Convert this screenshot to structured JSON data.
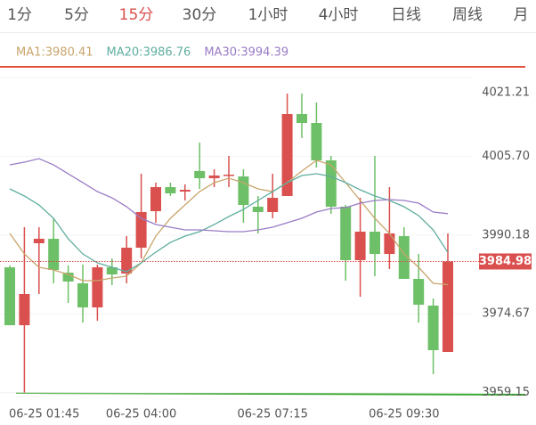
{
  "tabs": [
    {
      "label": "1分",
      "active": false
    },
    {
      "label": "5分",
      "active": false
    },
    {
      "label": "15分",
      "active": true
    },
    {
      "label": "30分",
      "active": false
    },
    {
      "label": "1小时",
      "active": false
    },
    {
      "label": "4小时",
      "active": false
    },
    {
      "label": "日线",
      "active": false
    },
    {
      "label": "周线",
      "active": false
    },
    {
      "label": "月",
      "active": false
    }
  ],
  "chart_data": {
    "type": "candlestick",
    "categories": [
      "06-25 01:45",
      null,
      null,
      null,
      null,
      null,
      null,
      null,
      null,
      "06-25 04:00",
      null,
      null,
      null,
      null,
      null,
      null,
      null,
      null,
      "06-25 07:15",
      null,
      null,
      null,
      null,
      null,
      null,
      null,
      null,
      "06-25 09:30",
      null,
      null,
      null
    ],
    "open": [
      3983.83,
      3972.43,
      3988.57,
      3989.45,
      3982.78,
      3980.68,
      3975.94,
      3983.83,
      3982.61,
      3987.69,
      3994.88,
      3999.62,
      3998.74,
      4002.78,
      4001.37,
      4001.9,
      4001.72,
      3995.76,
      3994.71,
      3997.87,
      4014.0,
      4012.25,
      4004.88,
      3995.76,
      3985.24,
      3990.85,
      3986.46,
      3989.97,
      3981.55,
      3976.29,
      3967.17
    ],
    "high": [
      3984.18,
      3991.73,
      3991.73,
      3993.48,
      3984.18,
      3984.36,
      3984.36,
      3985.59,
      3989.97,
      4002.25,
      4000.5,
      4000.5,
      4000.15,
      4008.39,
      4003.13,
      4005.76,
      4003.13,
      3997.87,
      4002.25,
      4018.04,
      4018.04,
      4016.28,
      4005.76,
      3996.11,
      3997.51,
      4005.76,
      3999.62,
      3991.73,
      3986.46,
      3977.69,
      3990.5
    ],
    "low": [
      3972.43,
      3959.15,
      3978.57,
      3980.68,
      3976.82,
      3972.96,
      3973.31,
      3980.33,
      3980.68,
      3985.59,
      3992.6,
      3997.87,
      3996.99,
      3999.27,
      3999.62,
      3999.62,
      3992.6,
      3990.5,
      3993.48,
      3997.87,
      4009.27,
      4003.48,
      3994.36,
      3981.2,
      3978.04,
      3982.08,
      3983.48,
      3981.55,
      3972.96,
      3962.79,
      3967.17
    ],
    "close": [
      3972.43,
      3978.57,
      3989.45,
      3983.31,
      3981.03,
      3975.94,
      3983.83,
      3982.43,
      3987.69,
      3994.71,
      3999.62,
      3998.39,
      3999.09,
      4001.37,
      4001.9,
      4002.07,
      3996.11,
      3994.71,
      3997.51,
      4014.0,
      4012.25,
      4004.88,
      3995.76,
      3985.24,
      3990.85,
      3986.46,
      3990.5,
      3981.55,
      3976.47,
      3967.52,
      3984.98
    ],
    "up_color": "#d9504e",
    "down_color": "#6dc067",
    "series": [
      {
        "name": "MA1:3980.41",
        "color": "#c9a56c",
        "values": [
          3990.5,
          3986.46,
          3983.83,
          3983.31,
          3982.43,
          3981.2,
          3981.2,
          3981.73,
          3982.08,
          3984.71,
          3989.97,
          3993.48,
          3996.11,
          3998.74,
          4000.5,
          4001.37,
          4000.5,
          3999.27,
          3998.74,
          4000.5,
          4002.78,
          4004.88,
          4004.0,
          4000.5,
          3996.99,
          3993.48,
          3990.5,
          3986.46,
          3983.83,
          3980.68,
          3980.41
        ]
      },
      {
        "name": "MA20:3986.76",
        "color": "#5fae9f",
        "values": [
          3999.27,
          3997.87,
          3996.11,
          3993.48,
          3989.45,
          3986.46,
          3984.71,
          3983.83,
          3982.96,
          3984.71,
          3986.81,
          3988.74,
          3989.97,
          3990.85,
          3992.25,
          3993.83,
          3995.23,
          3996.99,
          3998.74,
          4000.5,
          4001.9,
          4002.25,
          4001.72,
          4000.5,
          3999.09,
          3997.87,
          3996.99,
          3995.76,
          3994.01,
          3991.2,
          3986.76
        ]
      },
      {
        "name": "MA30:3994.39",
        "color": "#9a7cc6",
        "values": [
          4004.0,
          4004.53,
          4005.23,
          4004.0,
          4002.25,
          4000.5,
          3998.74,
          3997.51,
          3995.76,
          3993.48,
          3992.25,
          3991.73,
          3991.2,
          3991.2,
          3991.02,
          3990.85,
          3990.85,
          3991.2,
          3991.73,
          3992.6,
          3993.48,
          3994.71,
          3995.41,
          3995.58,
          3996.46,
          3996.99,
          3997.16,
          3996.99,
          3996.46,
          3994.71,
          3994.39
        ]
      }
    ],
    "last_price": 3984.98,
    "last_price_color": "#d9504e",
    "ylim": [
      3958.4,
      4023.3
    ],
    "yticks": [
      3959.15,
      3974.67,
      3990.18,
      {
        "value": 4005.7,
        "label": "4005.70"
      },
      4021.21
    ],
    "grid": true
  }
}
